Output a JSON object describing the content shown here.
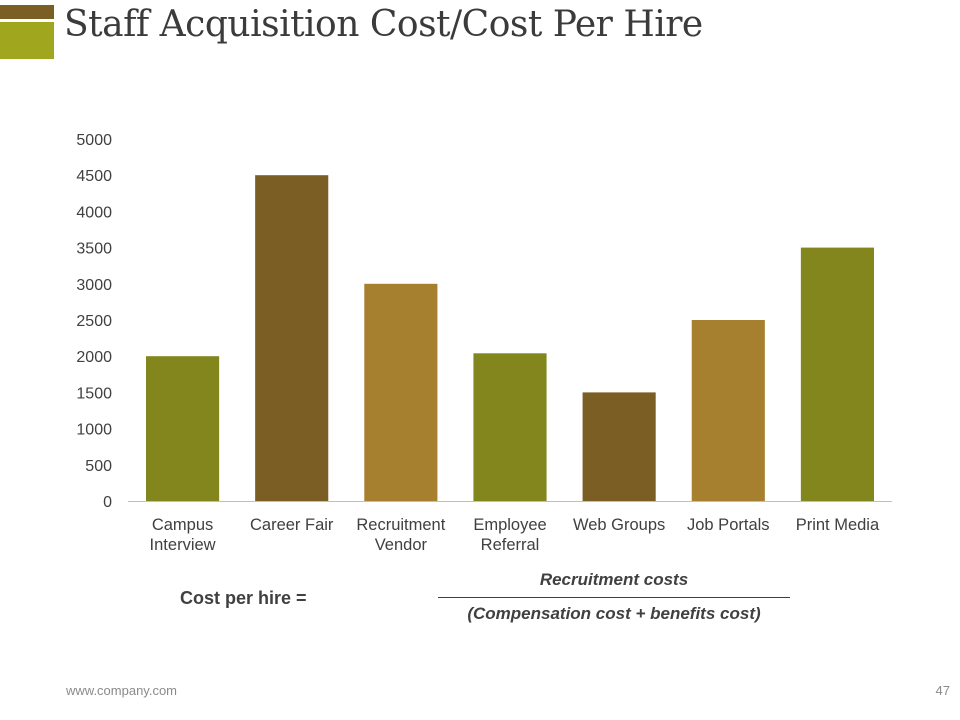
{
  "slide": {
    "title": "Staff Acquisition Cost/Cost Per Hire",
    "footer_url": "www.company.com",
    "page_number": "47"
  },
  "formula": {
    "label": "Cost per hire =",
    "numerator": "Recruitment costs",
    "denominator": "(Compensation cost + benefits cost)"
  },
  "colors": {
    "olive": "#82861d",
    "brown": "#7b5e23",
    "ochre": "#a67f2f",
    "logo_green": "#a0a61e"
  },
  "chart_data": {
    "type": "bar",
    "title": "",
    "xlabel": "",
    "ylabel": "",
    "categories": [
      [
        "Campus",
        "Interview"
      ],
      [
        "Career Fair"
      ],
      [
        "Recruitment",
        "Vendor"
      ],
      [
        "Employee",
        "Referral"
      ],
      [
        "Web Groups"
      ],
      [
        "Job Portals"
      ],
      [
        "Print Media"
      ]
    ],
    "values": [
      2000,
      4500,
      3000,
      2040,
      1500,
      2500,
      3500
    ],
    "bar_colors": [
      "#82861d",
      "#7b5e23",
      "#a67f2f",
      "#82861d",
      "#7b5e23",
      "#a67f2f",
      "#82861d"
    ],
    "ylim": [
      0,
      5000
    ],
    "yticks": [
      0,
      500,
      1000,
      1500,
      2000,
      2500,
      3000,
      3500,
      4000,
      4500,
      5000
    ],
    "grid": false,
    "legend": "none"
  }
}
